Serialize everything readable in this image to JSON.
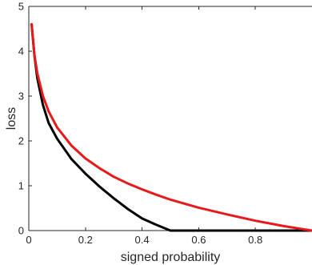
{
  "chart_data": {
    "type": "line",
    "title": "",
    "xlabel": "signed probability",
    "ylabel": "loss",
    "xlim": [
      0,
      1
    ],
    "ylim": [
      0,
      5
    ],
    "x_ticks": [
      0,
      0.2,
      0.4,
      0.6,
      0.8
    ],
    "x_tick_labels": [
      "0",
      "0.2",
      "0.4",
      "0.6",
      "0.8"
    ],
    "y_ticks": [
      0,
      1,
      2,
      3,
      4,
      5
    ],
    "y_tick_labels": [
      "0",
      "1",
      "2",
      "3",
      "4",
      "5"
    ],
    "grid": false,
    "series": [
      {
        "color": "#000000",
        "x": [
          0.01,
          0.02,
          0.03,
          0.05,
          0.07,
          0.1,
          0.15,
          0.2,
          0.25,
          0.3,
          0.35,
          0.4,
          0.45,
          0.5,
          0.6,
          0.7,
          0.8,
          0.9,
          1.0
        ],
        "y": [
          4.6,
          3.9,
          3.4,
          2.8,
          2.4,
          2.05,
          1.6,
          1.27,
          0.98,
          0.72,
          0.48,
          0.27,
          0.13,
          0.0,
          0.0,
          0.0,
          0.0,
          0.0,
          0.0
        ]
      },
      {
        "color": "#e8191a",
        "x": [
          0.01,
          0.02,
          0.03,
          0.05,
          0.07,
          0.1,
          0.15,
          0.2,
          0.25,
          0.3,
          0.35,
          0.4,
          0.45,
          0.5,
          0.6,
          0.7,
          0.8,
          0.9,
          1.0
        ],
        "y": [
          4.6,
          3.91,
          3.51,
          3.0,
          2.66,
          2.3,
          1.9,
          1.61,
          1.39,
          1.2,
          1.05,
          0.92,
          0.8,
          0.69,
          0.51,
          0.36,
          0.22,
          0.1,
          0.0
        ]
      }
    ]
  }
}
